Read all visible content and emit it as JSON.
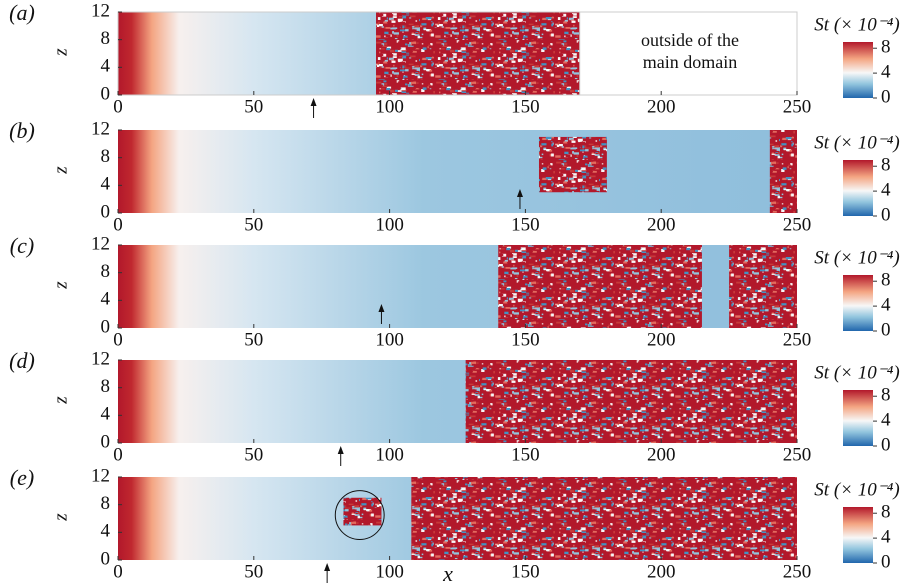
{
  "chart_data": [
    {
      "type": "heatmap",
      "panel": "(a)",
      "ylabel": "z",
      "xlim": [
        0,
        250
      ],
      "ylim": [
        0,
        12
      ],
      "xticks": [
        0,
        50,
        100,
        150,
        200,
        250
      ],
      "yticks": [
        0,
        4,
        8,
        12
      ],
      "domain_end": 170,
      "annotation": [
        "outside of the",
        "main domain"
      ],
      "turbulent_regions": [
        {
          "x": [
            95,
            170
          ],
          "z": [
            0,
            12
          ]
        }
      ],
      "arrow_x": 72,
      "arrow_position": "below",
      "colorbar_label": "St (× 10⁻⁴)",
      "colorbar_ticks": [
        0,
        4,
        8
      ],
      "colorbar_lim": [
        0,
        9
      ]
    },
    {
      "type": "heatmap",
      "panel": "(b)",
      "ylabel": "z",
      "xlim": [
        0,
        250
      ],
      "ylim": [
        0,
        12
      ],
      "xticks": [
        0,
        50,
        100,
        150,
        200,
        250
      ],
      "yticks": [
        0,
        4,
        8,
        12
      ],
      "turbulent_regions": [
        {
          "x": [
            155,
            180
          ],
          "z": [
            3,
            11
          ]
        },
        {
          "x": [
            240,
            250
          ],
          "z": [
            0,
            12
          ]
        }
      ],
      "arrow_x": 148,
      "arrow_position": "inside",
      "colorbar_label": "St (× 10⁻⁴)",
      "colorbar_ticks": [
        0,
        4,
        8
      ],
      "colorbar_lim": [
        0,
        9
      ]
    },
    {
      "type": "heatmap",
      "panel": "(c)",
      "ylabel": "z",
      "xlim": [
        0,
        250
      ],
      "ylim": [
        0,
        12
      ],
      "xticks": [
        0,
        50,
        100,
        150,
        200,
        250
      ],
      "yticks": [
        0,
        4,
        8,
        12
      ],
      "turbulent_regions": [
        {
          "x": [
            140,
            215
          ],
          "z": [
            0,
            12
          ]
        },
        {
          "x": [
            225,
            250
          ],
          "z": [
            0,
            12
          ]
        }
      ],
      "arrow_x": 97,
      "arrow_position": "inside",
      "colorbar_label": "St (× 10⁻⁴)",
      "colorbar_ticks": [
        0,
        4,
        8
      ],
      "colorbar_lim": [
        0,
        9
      ]
    },
    {
      "type": "heatmap",
      "panel": "(d)",
      "ylabel": "z",
      "xlim": [
        0,
        250
      ],
      "ylim": [
        0,
        12
      ],
      "xticks": [
        0,
        50,
        100,
        150,
        200,
        250
      ],
      "yticks": [
        0,
        4,
        8,
        12
      ],
      "turbulent_regions": [
        {
          "x": [
            128,
            250
          ],
          "z": [
            0,
            12
          ]
        }
      ],
      "arrow_x": 82,
      "arrow_position": "below",
      "colorbar_label": "St (× 10⁻⁴)",
      "colorbar_ticks": [
        0,
        4,
        8
      ],
      "colorbar_lim": [
        0,
        9
      ]
    },
    {
      "type": "heatmap",
      "panel": "(e)",
      "ylabel": "z",
      "xlabel": "x",
      "xlim": [
        0,
        250
      ],
      "ylim": [
        0,
        12
      ],
      "xticks": [
        0,
        50,
        100,
        150,
        200,
        250
      ],
      "yticks": [
        0,
        4,
        8,
        12
      ],
      "turbulent_regions": [
        {
          "x": [
            108,
            250
          ],
          "z": [
            0,
            12
          ]
        },
        {
          "x": [
            83,
            97
          ],
          "z": [
            5,
            9
          ]
        }
      ],
      "arrow_x": 77,
      "arrow_position": "below",
      "circle": {
        "x": 89,
        "z": 6.5,
        "r": 9
      },
      "colorbar_label": "St (× 10⁻⁴)",
      "colorbar_ticks": [
        0,
        4,
        8
      ],
      "colorbar_lim": [
        0,
        9
      ]
    }
  ]
}
